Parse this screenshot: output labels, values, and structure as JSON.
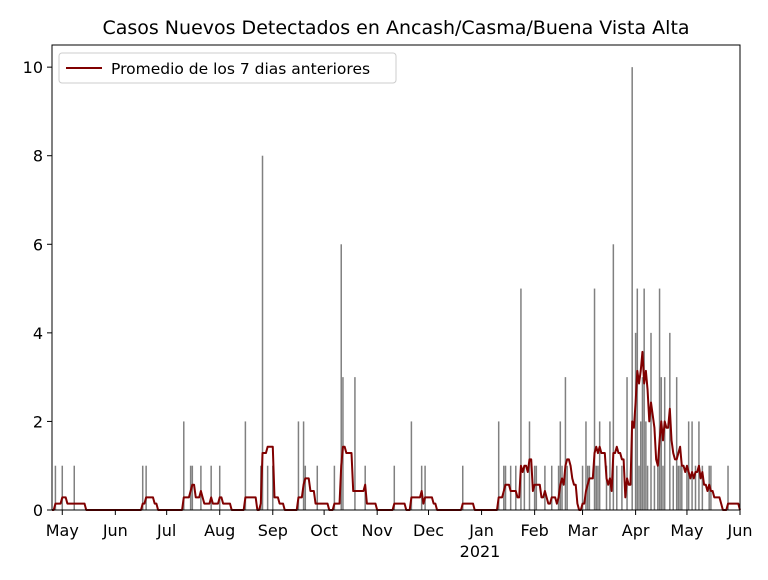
{
  "chart_data": {
    "type": "bar",
    "title": "Casos Nuevos Detectados en Ancash/Casma/Buena Vista Alta",
    "xlabel": "",
    "ylabel": "",
    "x_start": "2020-04-25",
    "x_end": "2021-06-01",
    "ylim": [
      0,
      10.5
    ],
    "yticks": [
      0,
      2,
      4,
      6,
      8,
      10
    ],
    "xticks": [
      {
        "date": "2020-05-01",
        "label": "May"
      },
      {
        "date": "2020-06-01",
        "label": "Jun"
      },
      {
        "date": "2020-07-01",
        "label": "Jul"
      },
      {
        "date": "2020-08-01",
        "label": "Aug"
      },
      {
        "date": "2020-09-01",
        "label": "Sep"
      },
      {
        "date": "2020-10-01",
        "label": "Oct"
      },
      {
        "date": "2020-11-01",
        "label": "Nov"
      },
      {
        "date": "2020-12-01",
        "label": "Dec"
      },
      {
        "date": "2021-01-01",
        "label": "Jan"
      },
      {
        "date": "2021-02-01",
        "label": "Feb"
      },
      {
        "date": "2021-03-01",
        "label": "Mar"
      },
      {
        "date": "2021-04-01",
        "label": "Apr"
      },
      {
        "date": "2021-05-01",
        "label": "May"
      },
      {
        "date": "2021-06-01",
        "label": "Jun"
      }
    ],
    "year_label": "2021",
    "legend": {
      "label": "Promedio de los 7 dias anteriores",
      "placement": "top-left"
    },
    "colors": {
      "bar": "#808080",
      "line": "#800000"
    },
    "series": [
      {
        "name": "Casos nuevos",
        "points": [
          [
            "2020-04-27",
            1
          ],
          [
            "2020-05-01",
            1
          ],
          [
            "2020-05-08",
            1
          ],
          [
            "2020-06-17",
            1
          ],
          [
            "2020-06-19",
            1
          ],
          [
            "2020-07-11",
            2
          ],
          [
            "2020-07-15",
            1
          ],
          [
            "2020-07-16",
            1
          ],
          [
            "2020-07-21",
            1
          ],
          [
            "2020-07-27",
            1
          ],
          [
            "2020-08-01",
            1
          ],
          [
            "2020-08-16",
            2
          ],
          [
            "2020-08-25",
            1
          ],
          [
            "2020-08-26",
            8
          ],
          [
            "2020-08-29",
            1
          ],
          [
            "2020-09-01",
            1
          ],
          [
            "2020-09-16",
            2
          ],
          [
            "2020-09-19",
            2
          ],
          [
            "2020-09-20",
            1
          ],
          [
            "2020-09-27",
            1
          ],
          [
            "2020-10-07",
            1
          ],
          [
            "2020-10-11",
            6
          ],
          [
            "2020-10-12",
            3
          ],
          [
            "2020-10-19",
            3
          ],
          [
            "2020-10-25",
            1
          ],
          [
            "2020-11-11",
            1
          ],
          [
            "2020-11-21",
            2
          ],
          [
            "2020-11-27",
            1
          ],
          [
            "2020-11-29",
            1
          ],
          [
            "2020-12-21",
            1
          ],
          [
            "2021-01-11",
            2
          ],
          [
            "2021-01-14",
            1
          ],
          [
            "2021-01-15",
            1
          ],
          [
            "2021-01-18",
            1
          ],
          [
            "2021-01-21",
            1
          ],
          [
            "2021-01-24",
            5
          ],
          [
            "2021-01-26",
            1
          ],
          [
            "2021-01-29",
            2
          ],
          [
            "2021-02-01",
            1
          ],
          [
            "2021-02-02",
            1
          ],
          [
            "2021-02-07",
            1
          ],
          [
            "2021-02-11",
            1
          ],
          [
            "2021-02-15",
            1
          ],
          [
            "2021-02-16",
            2
          ],
          [
            "2021-02-17",
            1
          ],
          [
            "2021-02-19",
            3
          ],
          [
            "2021-02-20",
            1
          ],
          [
            "2021-03-01",
            1
          ],
          [
            "2021-03-03",
            2
          ],
          [
            "2021-03-04",
            1
          ],
          [
            "2021-03-05",
            1
          ],
          [
            "2021-03-08",
            5
          ],
          [
            "2021-03-09",
            1
          ],
          [
            "2021-03-10",
            1
          ],
          [
            "2021-03-11",
            2
          ],
          [
            "2021-03-15",
            1
          ],
          [
            "2021-03-17",
            2
          ],
          [
            "2021-03-19",
            6
          ],
          [
            "2021-03-21",
            1
          ],
          [
            "2021-03-24",
            1
          ],
          [
            "2021-03-27",
            3
          ],
          [
            "2021-03-30",
            10
          ],
          [
            "2021-04-01",
            4
          ],
          [
            "2021-04-02",
            5
          ],
          [
            "2021-04-03",
            1
          ],
          [
            "2021-04-04",
            2
          ],
          [
            "2021-04-05",
            3
          ],
          [
            "2021-04-06",
            5
          ],
          [
            "2021-04-07",
            2
          ],
          [
            "2021-04-08",
            1
          ],
          [
            "2021-04-10",
            4
          ],
          [
            "2021-04-12",
            1
          ],
          [
            "2021-04-14",
            1
          ],
          [
            "2021-04-15",
            5
          ],
          [
            "2021-04-16",
            3
          ],
          [
            "2021-04-17",
            1
          ],
          [
            "2021-04-18",
            3
          ],
          [
            "2021-04-21",
            4
          ],
          [
            "2021-04-23",
            1
          ],
          [
            "2021-04-25",
            3
          ],
          [
            "2021-04-26",
            1
          ],
          [
            "2021-04-27",
            1
          ],
          [
            "2021-04-28",
            1
          ],
          [
            "2021-05-01",
            1
          ],
          [
            "2021-05-02",
            2
          ],
          [
            "2021-05-04",
            2
          ],
          [
            "2021-05-06",
            1
          ],
          [
            "2021-05-08",
            2
          ],
          [
            "2021-05-10",
            1
          ],
          [
            "2021-05-14",
            1
          ],
          [
            "2021-05-15",
            1
          ],
          [
            "2021-05-25",
            1
          ]
        ]
      },
      {
        "name": "Promedio de los 7 dias anteriores",
        "window": 7
      }
    ]
  }
}
